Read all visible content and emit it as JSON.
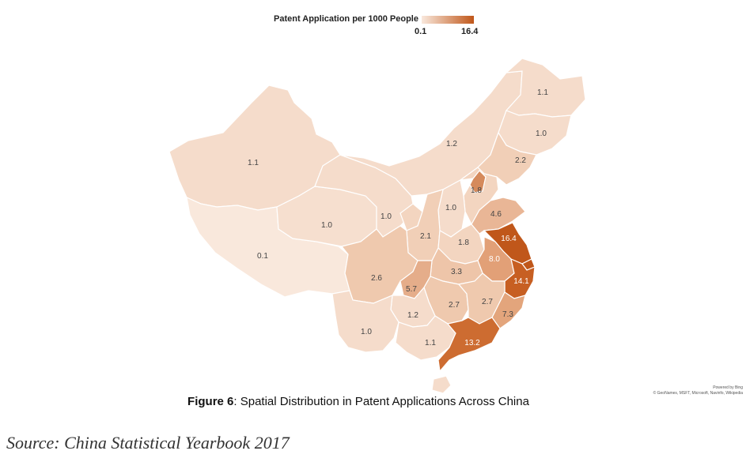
{
  "legend": {
    "title": "Patent Application per 1000 People",
    "min": "0.1",
    "max": "16.4",
    "color_low": "#f9e8dc",
    "color_high": "#c0571a"
  },
  "regions": [
    {
      "id": "xinjiang",
      "value": "1.1",
      "color": "#f5dccb"
    },
    {
      "id": "xizang",
      "value": "0.1",
      "color": "#f9e8dc"
    },
    {
      "id": "qinghai",
      "value": "1.0",
      "color": "#f6dfcf"
    },
    {
      "id": "gansu",
      "value": "1.0",
      "color": "#f5dccb"
    },
    {
      "id": "neimenggu",
      "value": "1.2",
      "color": "#f5dccb"
    },
    {
      "id": "heilongjiang",
      "value": "1.1",
      "color": "#f5dccb"
    },
    {
      "id": "jilin",
      "value": "1.0",
      "color": "#f5dccb"
    },
    {
      "id": "liaoning",
      "value": "2.2",
      "color": "#f1cfb7"
    },
    {
      "id": "beijing",
      "value": "",
      "color": "#d58a5c"
    },
    {
      "id": "hebei",
      "value": "1.8",
      "color": "#f3d5c0"
    },
    {
      "id": "shanxi",
      "value": "1.0",
      "color": "#f5dccb"
    },
    {
      "id": "ningxia",
      "value": "",
      "color": "#f3d5c0"
    },
    {
      "id": "shaanxi",
      "value": "2.1",
      "color": "#f1cfb7"
    },
    {
      "id": "henan",
      "value": "1.8",
      "color": "#f3d5c0"
    },
    {
      "id": "shandong",
      "value": "4.6",
      "color": "#e9b696"
    },
    {
      "id": "jiangsu",
      "value": "16.4",
      "color": "#c0571a"
    },
    {
      "id": "anhui",
      "value": "8.0",
      "color": "#e2a077"
    },
    {
      "id": "zhejiang",
      "value": "14.1",
      "color": "#c75f22"
    },
    {
      "id": "shanghai",
      "value": "",
      "color": "#c0571a"
    },
    {
      "id": "hubei",
      "value": "3.3",
      "color": "#eec5a9"
    },
    {
      "id": "sichuan",
      "value": "2.6",
      "color": "#efc9ae"
    },
    {
      "id": "chongqing",
      "value": "5.7",
      "color": "#e5ad8a"
    },
    {
      "id": "hunan",
      "value": "2.7",
      "color": "#efc9ae"
    },
    {
      "id": "jiangxi",
      "value": "2.7",
      "color": "#efc9ae"
    },
    {
      "id": "fujian",
      "value": "7.3",
      "color": "#e3a57c"
    },
    {
      "id": "guizhou",
      "value": "1.2",
      "color": "#f5dccb"
    },
    {
      "id": "yunnan",
      "value": "1.0",
      "color": "#f5dccb"
    },
    {
      "id": "guangxi",
      "value": "1.1",
      "color": "#f5dccb"
    },
    {
      "id": "guangdong",
      "value": "13.2",
      "color": "#cd6c31"
    },
    {
      "id": "hainan",
      "value": "",
      "color": "#f5dccb"
    }
  ],
  "caption": {
    "label": "Figure 6",
    "text": ": Spatial Distribution in Patent Applications Across China"
  },
  "credit": {
    "line1": "Powered by Bing",
    "line2": "© GeoNames, MSFT, Microsoft, Navinfo, Wikipedia"
  },
  "source": "Source: China Statistical Yearbook 2017"
}
